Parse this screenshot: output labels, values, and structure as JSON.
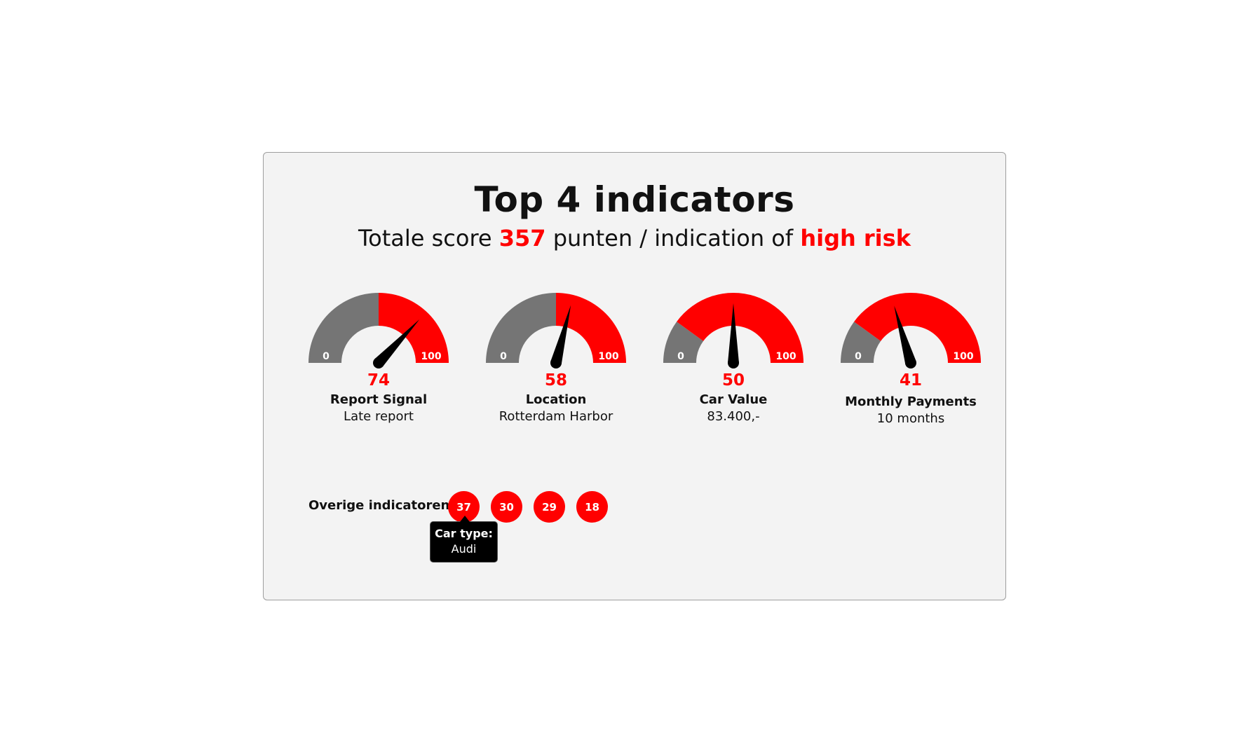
{
  "title": "Top 4 indicators",
  "subtitle": {
    "prefix": "Totale score ",
    "score": "357",
    "middle": " punten / indication of ",
    "risk": "high risk"
  },
  "colors": {
    "accent": "#ff0000",
    "neutral": "#757575",
    "needle": "#000000",
    "background": "#f3f3f3"
  },
  "chart_data": {
    "type": "gauge",
    "min": 0,
    "max": 100,
    "min_label": "0",
    "max_label": "100",
    "gauges": [
      {
        "value": 74,
        "value_label": "74",
        "name": "Report Signal",
        "detail": "Late report",
        "red_from": 50
      },
      {
        "value": 58,
        "value_label": "58",
        "name": "Location",
        "detail": "Rotterdam Harbor",
        "red_from": 50
      },
      {
        "value": 50,
        "value_label": "50",
        "name": "Car Value",
        "detail": "83.400,-",
        "red_from": 20
      },
      {
        "value": 41,
        "value_label": "41",
        "name": "Monthly Payments",
        "detail": "10 months",
        "red_from": 20
      }
    ],
    "other": {
      "label": "Overige indicatoren:",
      "values": [
        "37",
        "30",
        "29",
        "18"
      ]
    }
  },
  "tooltip": {
    "title": "Car type:",
    "value": "Audi"
  }
}
